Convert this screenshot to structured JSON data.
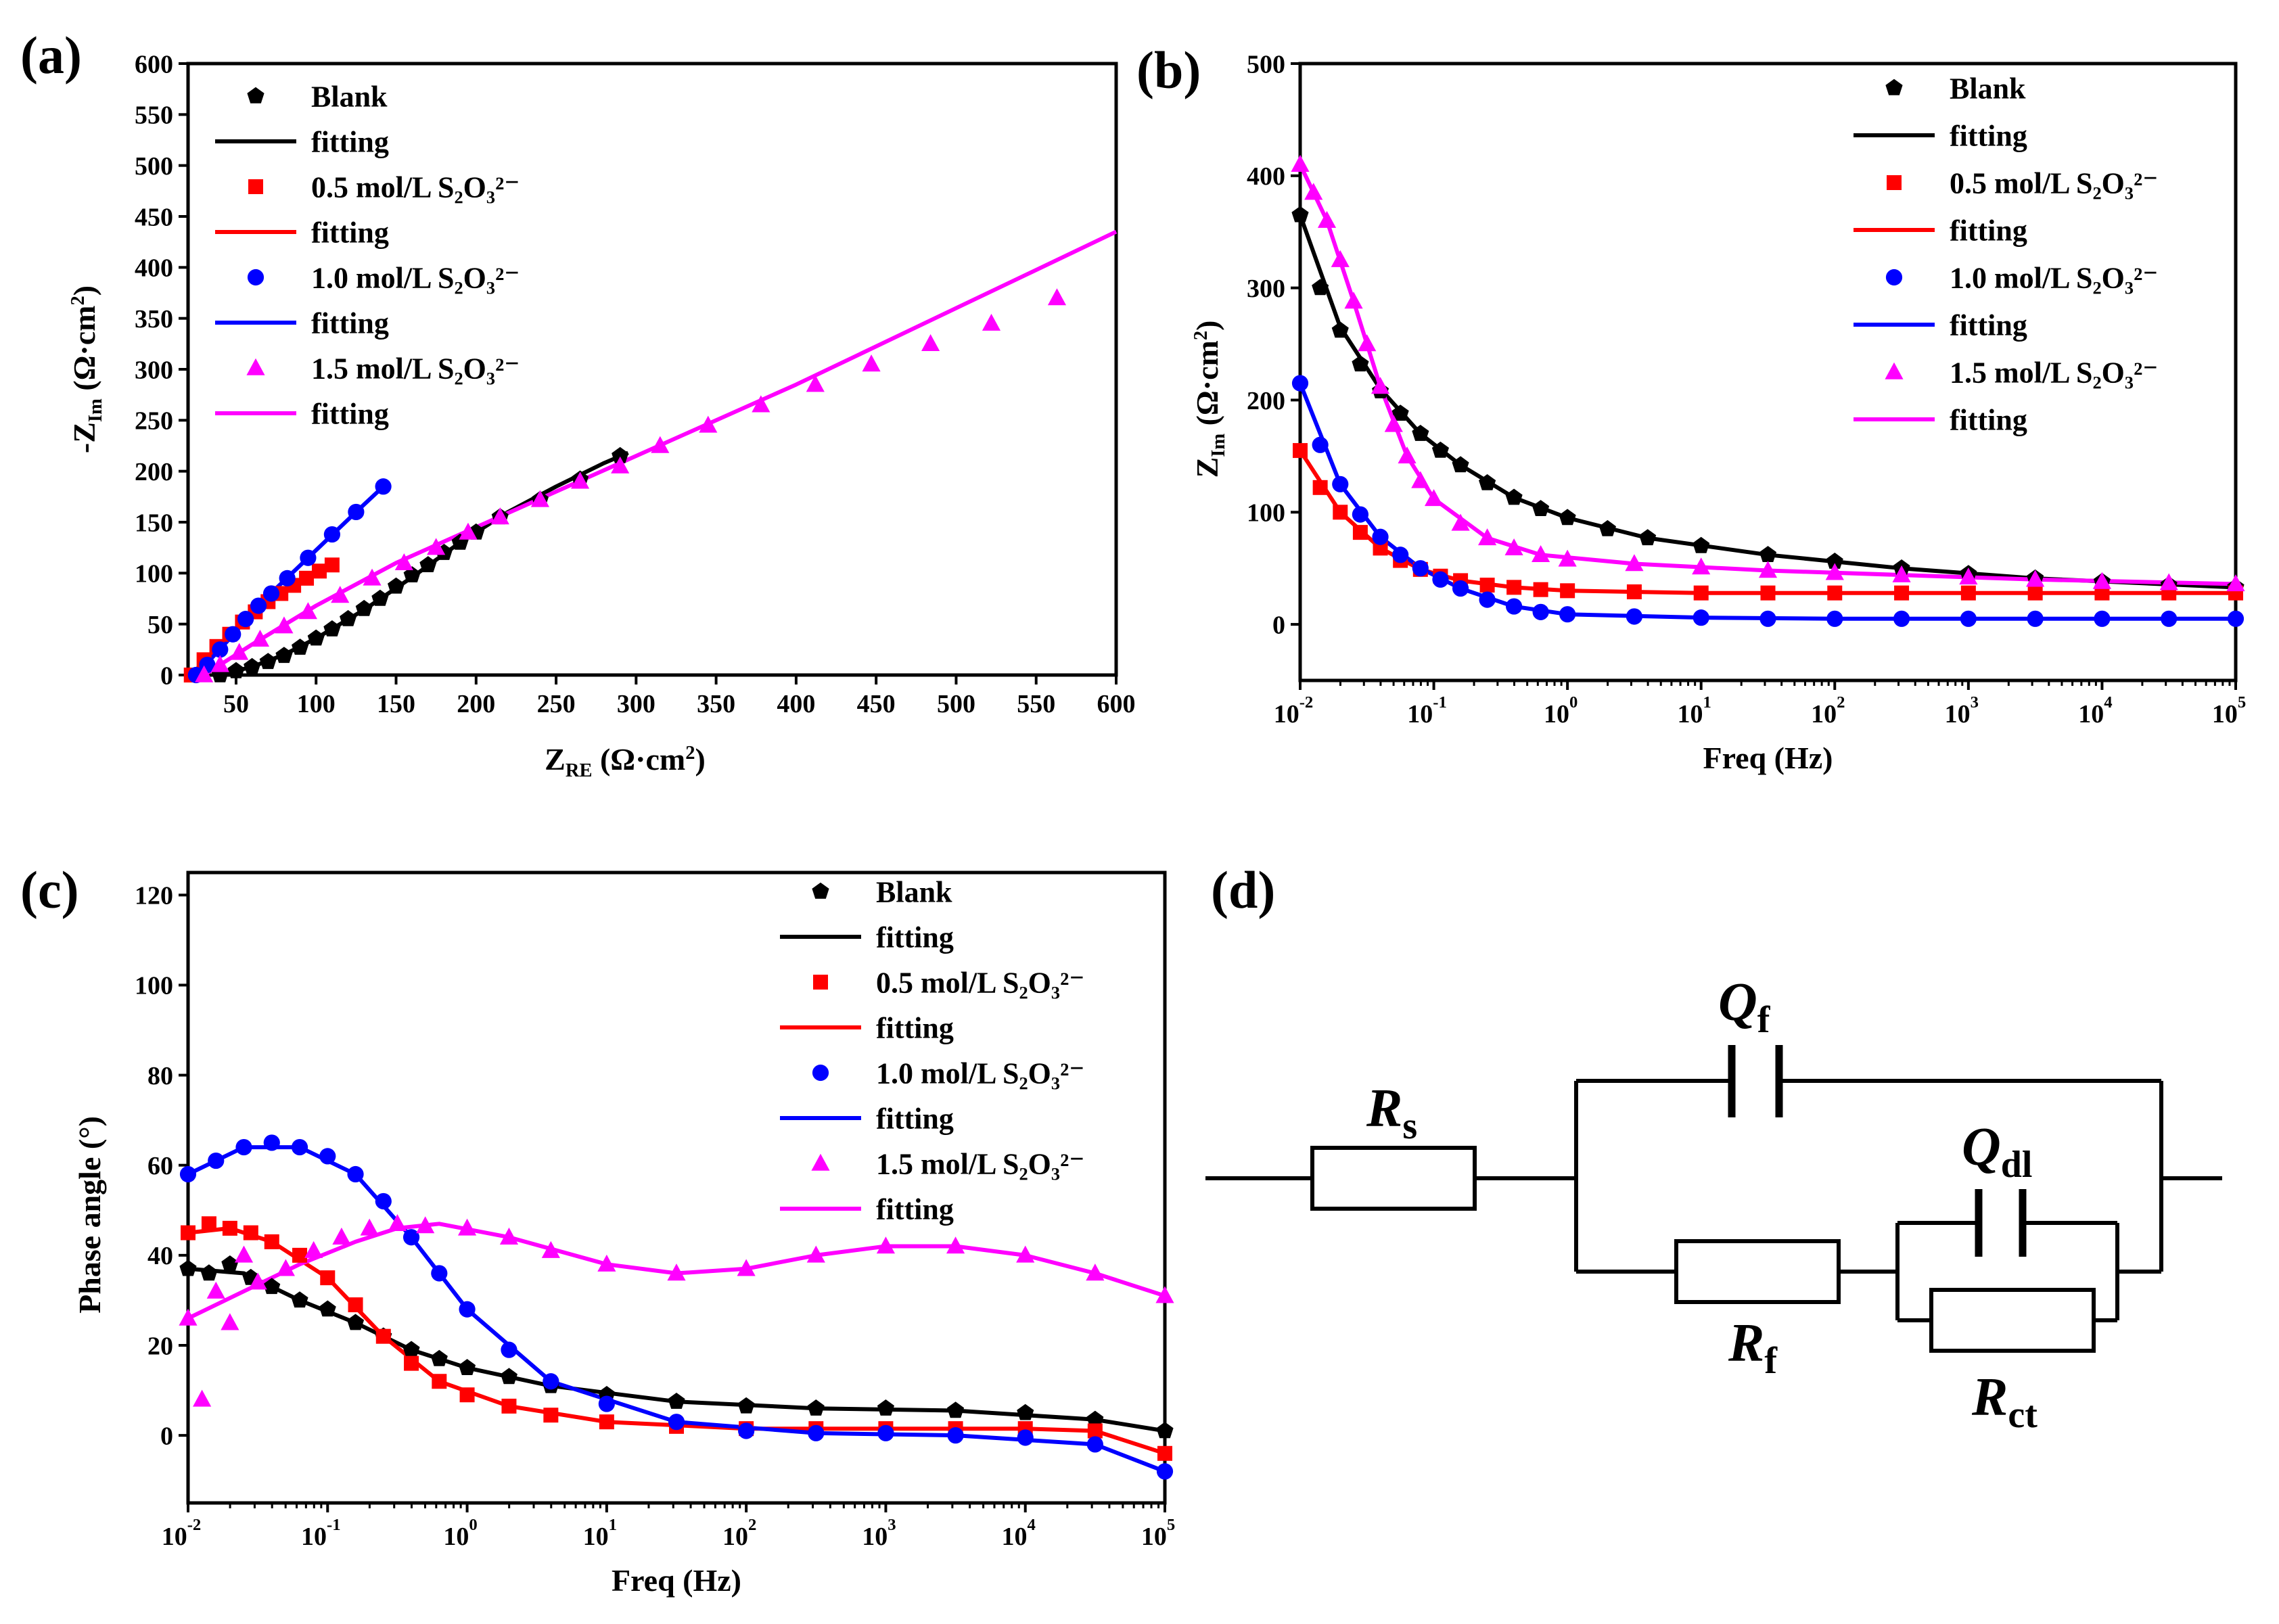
{
  "colors": {
    "blank": "#000000",
    "c05": "#ff0000",
    "c10": "#0000ff",
    "c15": "#ff00ff",
    "axis": "#000000"
  },
  "legend": {
    "entries": [
      {
        "key": "blank",
        "label": "Blank",
        "marker": "pentagon"
      },
      {
        "key": "blank",
        "label": "fitting",
        "marker": "line"
      },
      {
        "key": "c05",
        "label": "0.5 mol/L S₂O₃²⁻",
        "marker": "square"
      },
      {
        "key": "c05",
        "label": "fitting",
        "marker": "line"
      },
      {
        "key": "c10",
        "label": "1.0 mol/L S₂O₃²⁻",
        "marker": "circle"
      },
      {
        "key": "c10",
        "label": "fitting",
        "marker": "line"
      },
      {
        "key": "c15",
        "label": "1.5 mol/L S₂O₃²⁻",
        "marker": "triangle"
      },
      {
        "key": "c15",
        "label": "fitting",
        "marker": "line"
      }
    ]
  },
  "chart_data": [
    {
      "panel": "(a)",
      "type": "scatter",
      "xlabel": "Z_RE (Ω·cm²)",
      "ylabel": "-Z_Im (Ω·cm²)",
      "xlim": [
        20,
        600
      ],
      "ylim": [
        0,
        600
      ],
      "xticks": [
        50,
        100,
        150,
        200,
        250,
        300,
        350,
        400,
        450,
        500,
        550,
        600
      ],
      "yticks": [
        0,
        50,
        100,
        150,
        200,
        250,
        300,
        350,
        400,
        450,
        500,
        550,
        600
      ],
      "series": [
        {
          "key": "blank",
          "name": "Blank",
          "x": [
            40,
            50,
            60,
            70,
            80,
            90,
            100,
            110,
            120,
            130,
            140,
            150,
            160,
            170,
            180,
            190,
            200,
            215,
            240,
            265,
            290
          ],
          "y": [
            0,
            4,
            8,
            13,
            19,
            27,
            36,
            45,
            55,
            65,
            75,
            87,
            98,
            108,
            120,
            130,
            140,
            155,
            172,
            192,
            215
          ]
        },
        {
          "key": "c05",
          "name": "0.5 mol/L S₂O₃²⁻",
          "x": [
            22,
            30,
            38,
            46,
            54,
            62,
            70,
            78,
            86,
            94,
            102,
            110
          ],
          "y": [
            0,
            15,
            28,
            40,
            52,
            62,
            72,
            80,
            88,
            95,
            102,
            108
          ]
        },
        {
          "key": "c10",
          "name": "1.0 mol/L S₂O₃²⁻",
          "x": [
            25,
            32,
            40,
            48,
            56,
            64,
            72,
            82,
            95,
            110,
            125,
            142
          ],
          "y": [
            0,
            10,
            25,
            40,
            55,
            68,
            80,
            95,
            115,
            138,
            160,
            185
          ]
        },
        {
          "key": "c15",
          "name": "1.5 mol/L S₂O₃²⁻",
          "x": [
            30,
            40,
            52,
            65,
            80,
            95,
            115,
            135,
            155,
            175,
            195,
            215,
            240,
            265,
            290,
            315,
            345,
            378,
            412,
            447,
            484,
            522,
            563
          ],
          "y": [
            0,
            10,
            22,
            35,
            48,
            62,
            78,
            95,
            110,
            125,
            140,
            155,
            172,
            190,
            205,
            225,
            245,
            265,
            285,
            305,
            325,
            345,
            370
          ]
        }
      ],
      "fits": [
        {
          "key": "blank",
          "x": [
            40,
            60,
            80,
            100,
            130,
            160,
            190,
            220,
            250,
            280,
            295
          ],
          "y": [
            0,
            8,
            20,
            36,
            64,
            96,
            130,
            160,
            185,
            208,
            218
          ]
        },
        {
          "key": "c05",
          "x": [
            22,
            40,
            60,
            80,
            100,
            110
          ],
          "y": [
            0,
            30,
            60,
            82,
            100,
            108
          ]
        },
        {
          "key": "c10",
          "x": [
            25,
            45,
            65,
            85,
            105,
            125,
            142
          ],
          "y": [
            0,
            34,
            70,
            100,
            130,
            160,
            185
          ]
        },
        {
          "key": "c15",
          "x": [
            30,
            60,
            100,
            150,
            200,
            300,
            400,
            500,
            600
          ],
          "y": [
            0,
            30,
            68,
            110,
            145,
            215,
            285,
            360,
            435
          ]
        }
      ]
    },
    {
      "panel": "(b)",
      "type": "scatter",
      "xscale": "log",
      "xlabel": "Freq (Hz)",
      "ylabel": "Z_Im (Ω·cm²)",
      "xlim": [
        -2,
        5
      ],
      "ylim": [
        -50,
        500
      ],
      "xticks": [
        -2,
        -1,
        0,
        1,
        2,
        3,
        4,
        5
      ],
      "yticks": [
        0,
        100,
        200,
        300,
        400,
        500
      ],
      "series": [
        {
          "key": "blank",
          "name": "Blank",
          "x": [
            -2,
            -1.85,
            -1.7,
            -1.55,
            -1.4,
            -1.25,
            -1.1,
            -0.95,
            -0.8,
            -0.6,
            -0.4,
            -0.2,
            0,
            0.3,
            0.6,
            1,
            1.5,
            2,
            2.5,
            3,
            3.5,
            4,
            4.5,
            5
          ],
          "y": [
            365,
            300,
            262,
            232,
            208,
            188,
            170,
            155,
            142,
            126,
            113,
            103,
            95,
            85,
            77,
            70,
            62,
            56,
            50,
            45,
            41,
            38,
            35,
            33
          ]
        },
        {
          "key": "c05",
          "name": "0.5 mol/L S₂O₃²⁻",
          "x": [
            -2,
            -1.85,
            -1.7,
            -1.55,
            -1.4,
            -1.25,
            -1.1,
            -0.95,
            -0.8,
            -0.6,
            -0.4,
            -0.2,
            0,
            0.5,
            1,
            1.5,
            2,
            2.5,
            3,
            3.5,
            4,
            4.5,
            5
          ],
          "y": [
            155,
            122,
            100,
            82,
            68,
            57,
            49,
            43,
            39,
            35,
            33,
            31,
            30,
            29,
            28,
            28,
            28,
            28,
            28,
            28,
            28,
            28,
            28
          ]
        },
        {
          "key": "c10",
          "name": "1.0 mol/L S₂O₃²⁻",
          "x": [
            -2,
            -1.85,
            -1.7,
            -1.55,
            -1.4,
            -1.25,
            -1.1,
            -0.95,
            -0.8,
            -0.6,
            -0.4,
            -0.2,
            0,
            0.5,
            1,
            1.5,
            2,
            2.5,
            3,
            3.5,
            4,
            4.5,
            5
          ],
          "y": [
            215,
            160,
            125,
            98,
            78,
            62,
            50,
            40,
            32,
            22,
            16,
            11,
            9,
            7,
            6,
            5,
            5,
            5,
            5,
            5,
            5,
            5,
            5
          ]
        },
        {
          "key": "c15",
          "name": "1.5 mol/L S₂O₃²⁻",
          "x": [
            -2,
            -1.9,
            -1.8,
            -1.7,
            -1.6,
            -1.5,
            -1.4,
            -1.3,
            -1.2,
            -1.1,
            -1,
            -0.8,
            -0.6,
            -0.4,
            -0.2,
            0,
            0.5,
            1,
            1.5,
            2,
            2.5,
            3,
            3.5,
            4,
            4.5,
            5
          ],
          "y": [
            410,
            385,
            360,
            325,
            288,
            250,
            212,
            178,
            150,
            128,
            112,
            90,
            77,
            68,
            62,
            58,
            54,
            51,
            48,
            46,
            44,
            42,
            40,
            38,
            37,
            36
          ]
        }
      ],
      "fits": [
        {
          "key": "blank",
          "x": [
            -2,
            -1.7,
            -1.4,
            -1.1,
            -0.8,
            -0.4,
            0,
            0.6,
            1.5,
            2.5,
            3.5,
            5
          ],
          "y": [
            365,
            265,
            210,
            170,
            142,
            113,
            95,
            77,
            62,
            50,
            41,
            33
          ]
        },
        {
          "key": "c05",
          "x": [
            -2,
            -1.7,
            -1.4,
            -1.1,
            -0.8,
            -0.4,
            0,
            1,
            2,
            3,
            5
          ],
          "y": [
            155,
            100,
            68,
            49,
            39,
            33,
            30,
            28,
            28,
            28,
            28
          ]
        },
        {
          "key": "c10",
          "x": [
            -2,
            -1.7,
            -1.4,
            -1.1,
            -0.8,
            -0.4,
            0,
            1,
            2,
            3,
            5
          ],
          "y": [
            215,
            125,
            78,
            50,
            32,
            16,
            9,
            6,
            5,
            5,
            5
          ]
        },
        {
          "key": "c15",
          "x": [
            -2,
            -1.8,
            -1.6,
            -1.4,
            -1.2,
            -1,
            -0.6,
            -0.2,
            0.5,
            1.5,
            2.5,
            3.5,
            5
          ],
          "y": [
            410,
            360,
            288,
            212,
            150,
            112,
            77,
            62,
            54,
            48,
            44,
            40,
            36
          ]
        }
      ]
    },
    {
      "panel": "(c)",
      "type": "scatter",
      "xscale": "log",
      "xlabel": "Freq (Hz)",
      "ylabel": "Phase angle (°)",
      "xlim": [
        -2,
        5
      ],
      "ylim": [
        -15,
        125
      ],
      "xticks": [
        -2,
        -1,
        0,
        1,
        2,
        3,
        4,
        5
      ],
      "yticks": [
        0,
        20,
        40,
        60,
        80,
        100,
        120
      ],
      "series": [
        {
          "key": "blank",
          "name": "Blank",
          "x": [
            -2,
            -1.85,
            -1.7,
            -1.55,
            -1.4,
            -1.2,
            -1,
            -0.8,
            -0.6,
            -0.4,
            -0.2,
            0,
            0.3,
            0.6,
            1,
            1.5,
            2,
            2.5,
            3,
            3.5,
            4,
            4.5,
            5
          ],
          "y": [
            37,
            36,
            38,
            35,
            33,
            30,
            28,
            25,
            22,
            19,
            17,
            15,
            13,
            11,
            9,
            7.5,
            6.5,
            6,
            6,
            5.5,
            5,
            3.5,
            1
          ]
        },
        {
          "key": "c05",
          "name": "0.5 mol/L S₂O₃²⁻",
          "x": [
            -2,
            -1.85,
            -1.7,
            -1.55,
            -1.4,
            -1.2,
            -1,
            -0.8,
            -0.6,
            -0.4,
            -0.2,
            0,
            0.3,
            0.6,
            1,
            1.5,
            2,
            2.5,
            3,
            3.5,
            4,
            4.5,
            5
          ],
          "y": [
            45,
            47,
            46,
            45,
            43,
            40,
            35,
            29,
            22,
            16,
            12,
            9,
            6.5,
            4.5,
            3,
            2,
            1.5,
            1.5,
            1.5,
            1.5,
            1.5,
            1,
            -4
          ]
        },
        {
          "key": "c10",
          "name": "1.0 mol/L S₂O₃²⁻",
          "x": [
            -2,
            -1.8,
            -1.6,
            -1.4,
            -1.2,
            -1,
            -0.8,
            -0.6,
            -0.4,
            -0.2,
            0,
            0.3,
            0.6,
            1,
            1.5,
            2,
            2.5,
            3,
            3.5,
            4,
            4.5,
            5
          ],
          "y": [
            58,
            61,
            64,
            65,
            64,
            62,
            58,
            52,
            44,
            36,
            28,
            19,
            12,
            7,
            3,
            1,
            0.5,
            0.5,
            0,
            -0.5,
            -2,
            -8
          ]
        },
        {
          "key": "c15",
          "name": "1.5 mol/L S₂O₃²⁻",
          "x": [
            -2,
            -1.9,
            -1.8,
            -1.7,
            -1.6,
            -1.5,
            -1.3,
            -1.1,
            -0.9,
            -0.7,
            -0.5,
            -0.3,
            0,
            0.3,
            0.6,
            1,
            1.5,
            2,
            2.5,
            3,
            3.5,
            4,
            4.5,
            5
          ],
          "y": [
            26,
            8,
            32,
            25,
            40,
            34,
            37,
            41,
            44,
            46,
            47,
            46.5,
            46,
            44,
            41,
            38,
            36,
            37,
            40,
            42,
            42,
            40,
            36,
            31
          ]
        }
      ],
      "fits": [
        {
          "key": "blank",
          "x": [
            -2,
            -1.6,
            -1.2,
            -0.8,
            -0.4,
            0,
            0.6,
            1.5,
            2.5,
            3.5,
            4.5,
            5
          ],
          "y": [
            37,
            36,
            30,
            25,
            19,
            15,
            11,
            7.5,
            6,
            5.5,
            3.5,
            1
          ]
        },
        {
          "key": "c05",
          "x": [
            -2,
            -1.7,
            -1.4,
            -1,
            -0.6,
            -0.2,
            0.3,
            1,
            2,
            3,
            4,
            4.5,
            5
          ],
          "y": [
            45,
            46,
            43,
            35,
            22,
            12,
            6.5,
            3,
            1.5,
            1.5,
            1.5,
            1,
            -4
          ]
        },
        {
          "key": "c10",
          "x": [
            -2,
            -1.6,
            -1.2,
            -0.8,
            -0.4,
            0,
            0.6,
            1.5,
            2.5,
            3.5,
            4.5,
            5
          ],
          "y": [
            58,
            64,
            64,
            58,
            44,
            28,
            12,
            3,
            0.5,
            0,
            -2,
            -8
          ]
        },
        {
          "key": "c15",
          "x": [
            -2,
            -1.6,
            -1.2,
            -0.8,
            -0.5,
            -0.2,
            0.3,
            1,
            1.5,
            2,
            2.5,
            3,
            3.5,
            4,
            4.5,
            5
          ],
          "y": [
            26,
            32,
            38,
            43,
            46,
            47,
            44,
            38,
            36,
            37,
            40,
            42,
            42,
            40,
            36,
            31
          ]
        }
      ]
    }
  ],
  "circuit": {
    "panel": "(d)",
    "components": [
      {
        "id": "Rs",
        "base": "R",
        "sub": "s"
      },
      {
        "id": "Qf",
        "base": "Q",
        "sub": "f"
      },
      {
        "id": "Rf",
        "base": "R",
        "sub": "f"
      },
      {
        "id": "Qdl",
        "base": "Q",
        "sub": "dl"
      },
      {
        "id": "Rct",
        "base": "R",
        "sub": "ct"
      }
    ]
  }
}
